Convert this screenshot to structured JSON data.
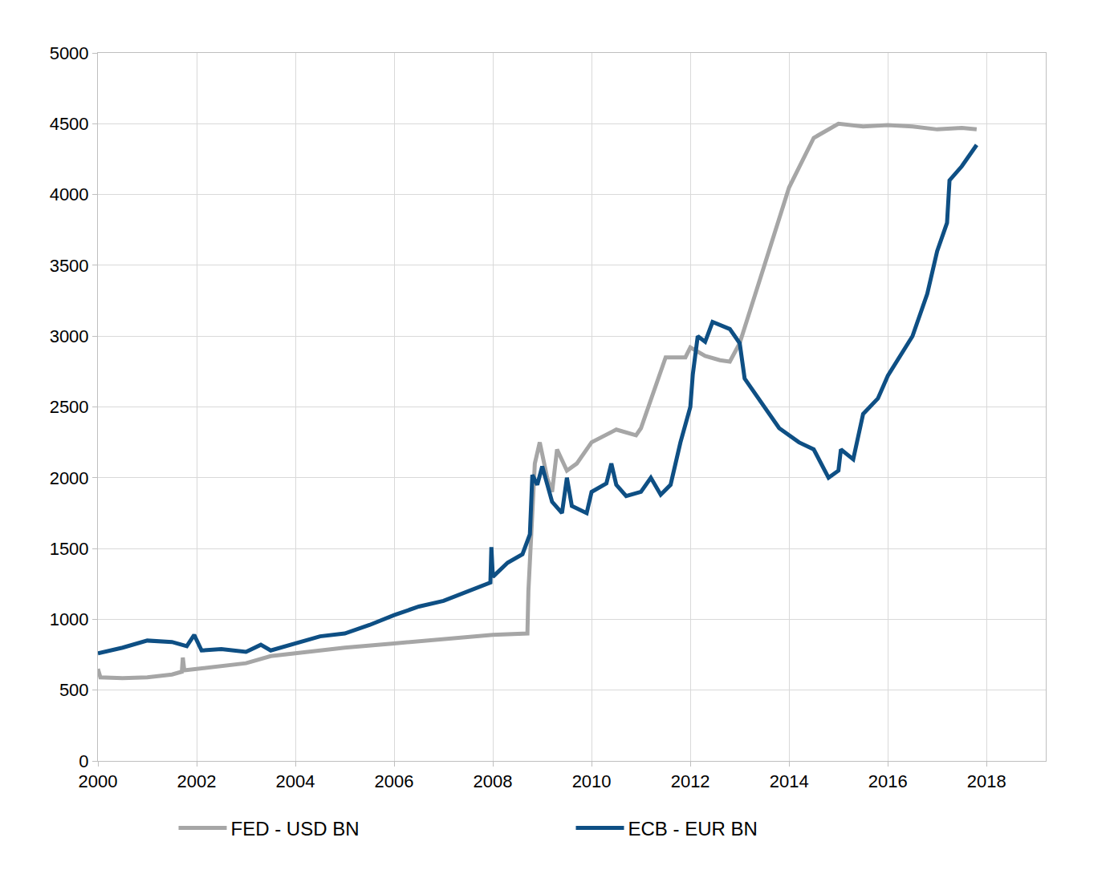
{
  "chart_data": {
    "type": "line",
    "xlim": [
      2000,
      2019.2
    ],
    "xticks": [
      2000,
      2002,
      2004,
      2006,
      2008,
      2010,
      2012,
      2014,
      2016,
      2018
    ],
    "ylim": [
      0,
      5000
    ],
    "yticks": [
      0,
      500,
      1000,
      1500,
      2000,
      2500,
      3000,
      3500,
      4000,
      4500,
      5000
    ],
    "grid": true,
    "legend": "bottom",
    "series": [
      {
        "name": "FED - USD BN",
        "color": "#a6a6a6",
        "x": [
          2000.0,
          2000.05,
          2000.5,
          2001.0,
          2001.5,
          2001.7,
          2001.72,
          2001.75,
          2002.0,
          2003.0,
          2003.5,
          2004.0,
          2005.0,
          2006.0,
          2007.0,
          2008.0,
          2008.7,
          2008.72,
          2008.85,
          2008.95,
          2009.1,
          2009.2,
          2009.3,
          2009.5,
          2009.7,
          2010.0,
          2010.5,
          2010.9,
          2011.0,
          2011.5,
          2011.9,
          2012.0,
          2012.3,
          2012.6,
          2012.8,
          2013.0,
          2013.5,
          2014.0,
          2014.5,
          2015.0,
          2015.5,
          2016.0,
          2016.5,
          2017.0,
          2017.5,
          2017.8
        ],
        "values": [
          650,
          590,
          585,
          590,
          610,
          630,
          730,
          640,
          650,
          690,
          740,
          760,
          800,
          830,
          860,
          890,
          900,
          1200,
          2100,
          2250,
          2000,
          1900,
          2200,
          2050,
          2100,
          2250,
          2340,
          2300,
          2350,
          2850,
          2850,
          2920,
          2860,
          2830,
          2820,
          2950,
          3500,
          4050,
          4400,
          4500,
          4480,
          4490,
          4480,
          4460,
          4470,
          4460
        ]
      },
      {
        "name": "ECB - EUR BN",
        "color": "#0e4f84",
        "x": [
          2000.0,
          2000.5,
          2001.0,
          2001.5,
          2001.8,
          2001.95,
          2002.1,
          2002.5,
          2003.0,
          2003.3,
          2003.5,
          2004.0,
          2004.5,
          2005.0,
          2005.5,
          2006.0,
          2006.5,
          2007.0,
          2007.5,
          2007.95,
          2007.97,
          2008.0,
          2008.3,
          2008.6,
          2008.75,
          2008.8,
          2008.9,
          2009.0,
          2009.2,
          2009.4,
          2009.5,
          2009.6,
          2009.9,
          2010.0,
          2010.3,
          2010.4,
          2010.5,
          2010.7,
          2011.0,
          2011.2,
          2011.4,
          2011.6,
          2011.8,
          2012.0,
          2012.05,
          2012.15,
          2012.3,
          2012.45,
          2012.8,
          2013.0,
          2013.1,
          2013.5,
          2013.8,
          2014.2,
          2014.5,
          2014.8,
          2015.0,
          2015.05,
          2015.3,
          2015.5,
          2015.8,
          2016.0,
          2016.5,
          2016.8,
          2017.0,
          2017.2,
          2017.25,
          2017.5,
          2017.8
        ],
        "values": [
          760,
          800,
          850,
          840,
          810,
          890,
          780,
          790,
          770,
          820,
          780,
          830,
          880,
          900,
          960,
          1030,
          1090,
          1130,
          1200,
          1260,
          1510,
          1300,
          1400,
          1460,
          1600,
          2020,
          1950,
          2080,
          1830,
          1750,
          2000,
          1800,
          1750,
          1900,
          1960,
          2100,
          1950,
          1870,
          1900,
          2000,
          1880,
          1950,
          2250,
          2500,
          2730,
          3000,
          2960,
          3100,
          3050,
          2950,
          2700,
          2500,
          2350,
          2250,
          2200,
          2000,
          2050,
          2200,
          2130,
          2450,
          2560,
          2720,
          3000,
          3300,
          3600,
          3800,
          4100,
          4200,
          4350
        ]
      }
    ]
  }
}
